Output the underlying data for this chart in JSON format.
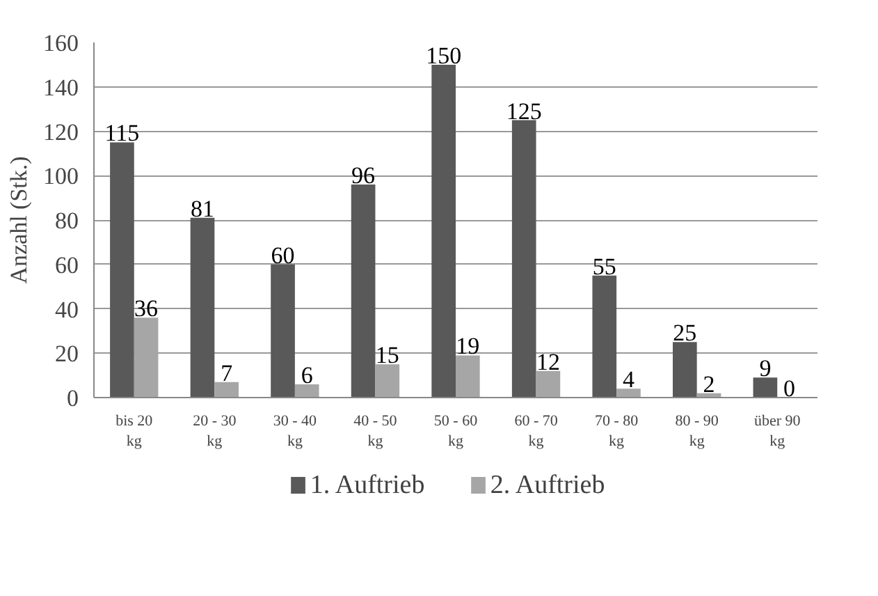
{
  "chart_data": {
    "type": "bar",
    "ylabel": "Anzahl (Stk.)",
    "categories": [
      "bis 20 kg",
      "20 - 30 kg",
      "30 - 40 kg",
      "40 - 50 kg",
      "50 - 60 kg",
      "60 - 70 kg",
      "70 - 80 kg",
      "80 - 90 kg",
      "über 90 kg"
    ],
    "series": [
      {
        "name": "1. Auftrieb",
        "color": "#595959",
        "values": [
          115,
          81,
          60,
          96,
          150,
          125,
          55,
          25,
          9
        ]
      },
      {
        "name": "2. Auftrieb",
        "color": "#a6a6a6",
        "values": [
          36,
          7,
          6,
          15,
          19,
          12,
          4,
          2,
          0
        ]
      }
    ],
    "ylim": [
      0,
      160
    ],
    "yticks": [
      0,
      20,
      40,
      60,
      80,
      100,
      120,
      140,
      160
    ],
    "grid": "y",
    "legend": "bottom",
    "data_labels": true
  }
}
